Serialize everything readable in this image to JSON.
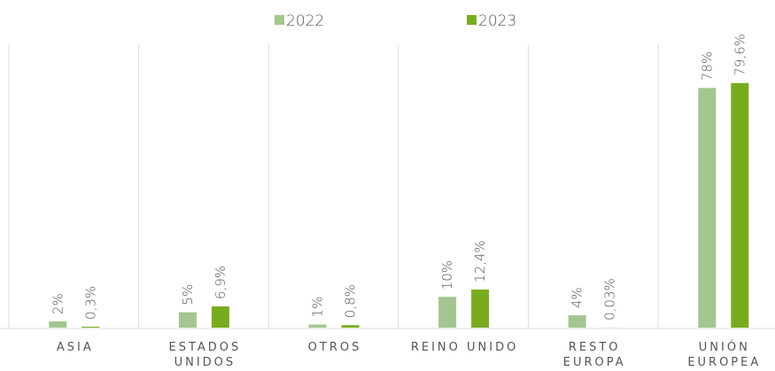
{
  "chart_data": {
    "type": "bar",
    "categories": [
      "ASIA",
      "ESTADOS UNIDOS",
      "OTROS",
      "REINO UNIDO",
      "RESTO EUROPA",
      "UNIÓN EUROPEA"
    ],
    "series": [
      {
        "name": "2022",
        "color": "#a3c58f",
        "values": [
          2,
          5,
          1,
          10,
          4,
          78
        ],
        "value_labels": [
          "2%",
          "5%",
          "1%",
          "10%",
          "4%",
          "78%"
        ]
      },
      {
        "name": "2023",
        "color": "#79ab1f",
        "values": [
          0.3,
          6.9,
          0.8,
          12.4,
          0.03,
          79.6
        ],
        "value_labels": [
          "0,3%",
          "6,9%",
          "0,8%",
          "12,4%",
          "0,03%",
          "79,6%"
        ]
      }
    ]
  }
}
